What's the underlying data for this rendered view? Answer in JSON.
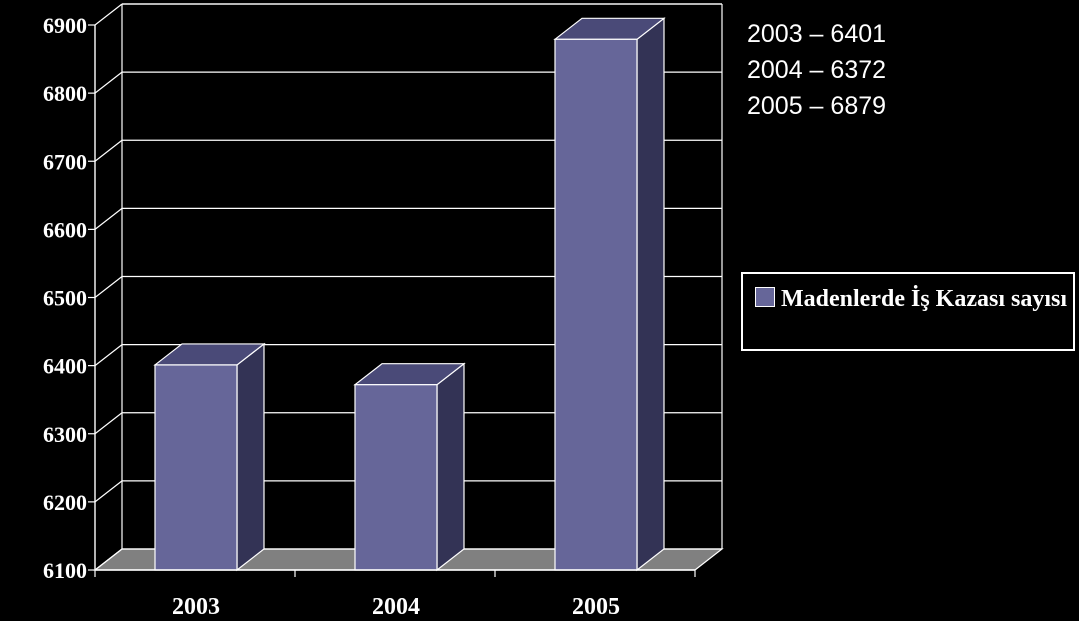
{
  "chart_data": {
    "type": "bar",
    "categories": [
      "2003",
      "2004",
      "2005"
    ],
    "series": [
      {
        "name": "Madenlerde İş Kazası sayısı",
        "values": [
          6401,
          6372,
          6879
        ],
        "color": "#666699",
        "side_color": "#333355",
        "top_color": "#4a4a78"
      }
    ],
    "ylim": [
      6100,
      6900
    ],
    "yticks": [
      "6100",
      "6200",
      "6300",
      "6400",
      "6500",
      "6600",
      "6700",
      "6800",
      "6900"
    ],
    "grid": true,
    "legend_position": "right",
    "floor_color": "#808080",
    "annotations": [
      "2003 – 6401",
      "2004 – 6372",
      "2005 – 6879"
    ]
  }
}
